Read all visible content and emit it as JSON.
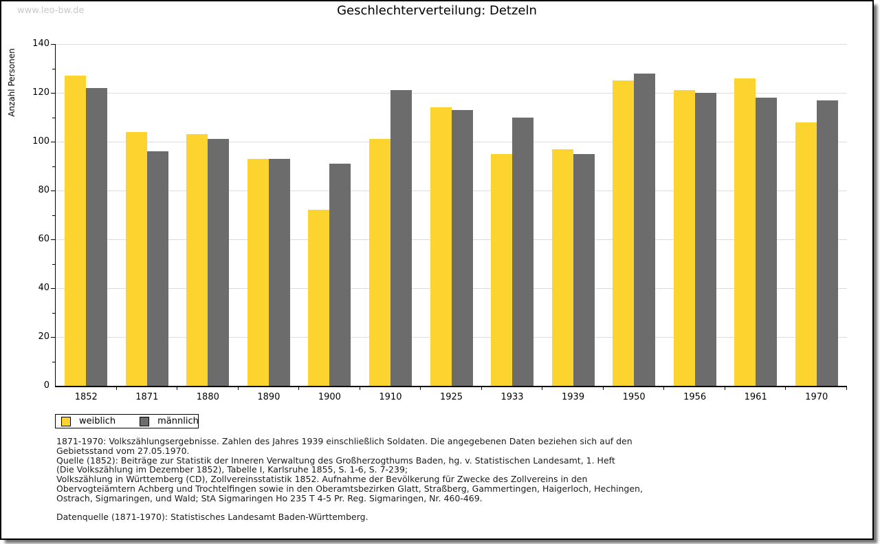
{
  "watermark": "www.leo-bw.de",
  "title": "Geschlechterverteilung: Detzeln",
  "chart_data": {
    "type": "bar",
    "title": "Geschlechterverteilung: Detzeln",
    "xlabel": "",
    "ylabel": "Anzahl Personen",
    "ylim": [
      0,
      140
    ],
    "ytick_step": 20,
    "ytick_minor_step": 10,
    "grid": "horizontal-major",
    "legend_position": "bottom-left",
    "categories": [
      "1852",
      "1871",
      "1880",
      "1890",
      "1900",
      "1910",
      "1925",
      "1933",
      "1939",
      "1950",
      "1956",
      "1961",
      "1970"
    ],
    "series": [
      {
        "name": "weiblich",
        "color": "#FCD32F",
        "values": [
          127,
          104,
          103,
          93,
          72,
          101,
          114,
          95,
          97,
          125,
          121,
          126,
          108
        ]
      },
      {
        "name": "männlich",
        "color": "#6C6C6C",
        "values": [
          122,
          96,
          101,
          93,
          91,
          121,
          113,
          110,
          95,
          128,
          120,
          118,
          117
        ]
      }
    ]
  },
  "legend": {
    "items": [
      {
        "label": "weiblich",
        "color": "#FCD32F"
      },
      {
        "label": "männlich",
        "color": "#6C6C6C"
      }
    ]
  },
  "footnotes": {
    "lines": [
      "1871-1970: Volkszählungsergebnisse. Zahlen des Jahres 1939 einschließlich Soldaten. Die angegebenen Daten beziehen sich auf den",
      "Gebietsstand vom 27.05.1970.",
      "Quelle (1852): Beiträge zur Statistik der Inneren Verwaltung des Großherzogthums Baden, hg. v. Statistischen Landesamt, 1. Heft",
      "(Die Volkszählung im Dezember 1852), Tabelle I, Karlsruhe 1855, S. 1-6, S. 7-239;",
      "Volkszählung in Württemberg (CD), Zollvereinsstatistik 1852. Aufnahme der Bevölkerung für Zwecke des Zollvereins in den",
      "Obervogteiämtern Achberg und Trochtelfingen sowie in den Oberamtsbezirken Glatt, Straßberg, Gammertingen, Haigerloch, Hechingen,",
      "Ostrach, Sigmaringen, und Wald; StA Sigmaringen Ho 235 T 4-5 Pr. Reg. Sigmaringen, Nr. 460-469.",
      "",
      "Datenquelle (1871-1970): Statistisches Landesamt Baden-Württemberg."
    ]
  },
  "colors": {
    "female_bar": "#FCD32F",
    "male_bar": "#6C6C6C",
    "gridline": "#DCDCDC",
    "axis": "#000000",
    "watermark": "#C8C8C8",
    "background": "#FFFFFF"
  }
}
